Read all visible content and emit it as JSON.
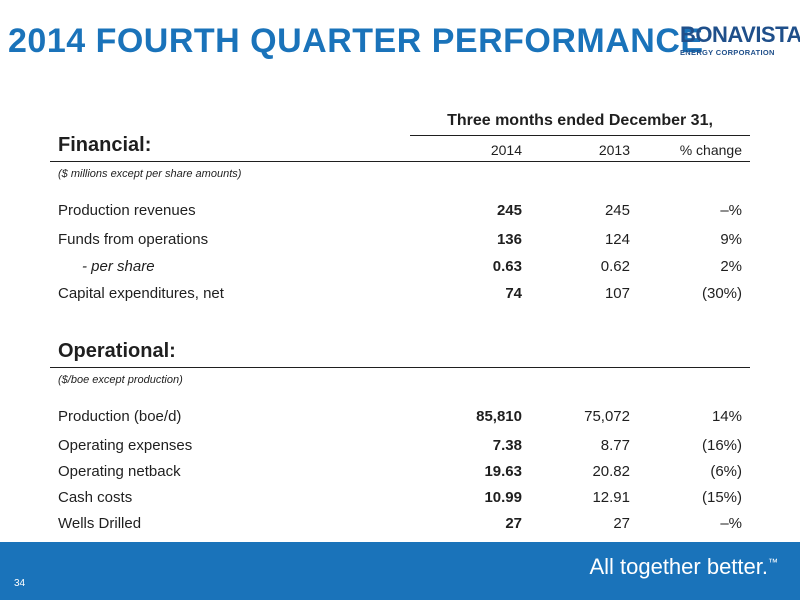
{
  "header": {
    "title": "2014 FOURTH QUARTER PERFORMANCE",
    "logo_main": "BONAVISTA",
    "logo_sub": "ENERGY CORPORATION"
  },
  "period_header": "Three months ended December 31,",
  "financial": {
    "title": "Financial:",
    "col_2014": "2014",
    "col_2013": "2013",
    "col_change": "% change",
    "note": "($ millions except per share amounts)",
    "rows": [
      {
        "label": "Production revenues",
        "v2014": "245",
        "v2013": "245",
        "change": "–%"
      },
      {
        "label": "Funds from operations",
        "v2014": "136",
        "v2013": "124",
        "change": "9%"
      },
      {
        "label": "- per share",
        "v2014": "0.63",
        "v2013": "0.62",
        "change": "2%"
      },
      {
        "label": "Capital expenditures, net",
        "v2014": "74",
        "v2013": "107",
        "change": "(30%)"
      }
    ]
  },
  "operational": {
    "title": "Operational:",
    "note": "($/boe except production)",
    "rows": [
      {
        "label": "Production (boe/d)",
        "v2014": "85,810",
        "v2013": "75,072",
        "change": "14%"
      },
      {
        "label": "Operating expenses",
        "v2014": "7.38",
        "v2013": "8.77",
        "change": "(16%)"
      },
      {
        "label": "Operating netback",
        "v2014": "19.63",
        "v2013": "20.82",
        "change": "(6%)"
      },
      {
        "label": "Cash costs",
        "v2014": "10.99",
        "v2013": "12.91",
        "change": "(15%)"
      },
      {
        "label": "Wells Drilled",
        "v2014": "27",
        "v2013": "27",
        "change": "–%"
      }
    ]
  },
  "footer": {
    "page_number": "34",
    "tagline": "All together better.",
    "trademark": "™"
  },
  "colors": {
    "brand_blue": "#1a73ba",
    "logo_navy": "#1f4f8a"
  }
}
